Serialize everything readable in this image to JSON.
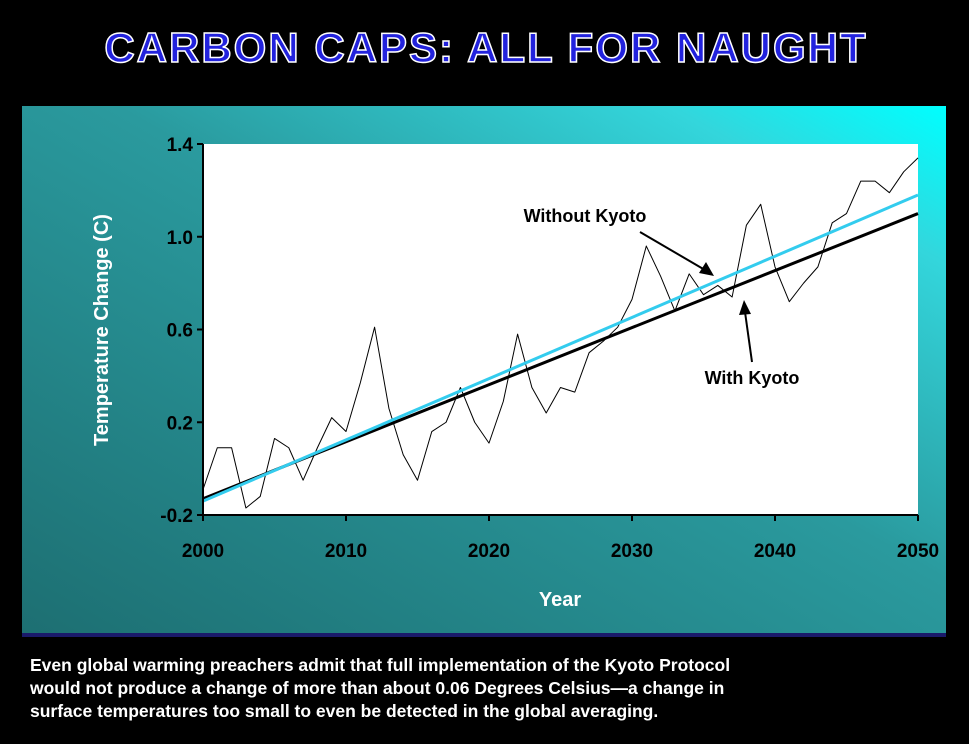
{
  "chart_data": {
    "type": "line",
    "title": "CARBON CAPS: ALL FOR NAUGHT",
    "y_label": "Temperature Change (C)",
    "x_label": "Year",
    "xlim": [
      2000,
      2050
    ],
    "xticks": [
      2000,
      2010,
      2020,
      2030,
      2040,
      2050
    ],
    "ylim": [
      -0.2,
      1.4
    ],
    "yticks": [
      -0.2,
      0.2,
      0.6,
      {
        "value": 1,
        "label": "1.0"
      },
      1.4
    ],
    "series": [
      {
        "color": "#000000",
        "width": 1,
        "x": [
          2000,
          2001,
          2002,
          2003,
          2004,
          2005,
          2006,
          2007,
          2008,
          2009,
          2010,
          2011,
          2012,
          2013,
          2014,
          2015,
          2016,
          2017,
          2018,
          2019,
          2020,
          2021,
          2022,
          2023,
          2024,
          2025,
          2026,
          2027,
          2028,
          2029,
          2030,
          2031,
          2032,
          2033,
          2034,
          2035,
          2036,
          2037,
          2038,
          2039,
          2040,
          2041,
          2042,
          2043,
          2044,
          2045,
          2046,
          2047,
          2048,
          2049,
          2050
        ],
        "values": [
          -0.09,
          0.09,
          0.09,
          -0.17,
          -0.12,
          0.13,
          0.09,
          -0.05,
          0.09,
          0.22,
          0.16,
          0.37,
          0.61,
          0.26,
          0.06,
          -0.05,
          0.16,
          0.2,
          0.35,
          0.2,
          0.11,
          0.29,
          0.58,
          0.35,
          0.24,
          0.35,
          0.33,
          0.5,
          0.55,
          0.61,
          0.73,
          0.96,
          0.83,
          0.68,
          0.84,
          0.75,
          0.79,
          0.74,
          1.05,
          1.14,
          0.87,
          0.72,
          0.8,
          0.87,
          1.06,
          1.1,
          1.24,
          1.24,
          1.19,
          1.28,
          1.34
        ]
      },
      {
        "color": "#000000",
        "width": 3,
        "x": [
          2000,
          2050
        ],
        "values": [
          -0.13,
          1.1
        ]
      },
      {
        "color": "#33ccee",
        "width": 3,
        "x": [
          2000,
          2050
        ],
        "values": [
          -0.14,
          1.18
        ]
      }
    ],
    "annotations": [
      "Without Kyoto",
      "With Kyoto"
    ]
  },
  "caption": [
    "Even global warming preachers admit that full implementation of the Kyoto Protocol",
    "would not produce a change of more than about 0.06 Degrees Celsius—a change in",
    "surface temperatures too small to even be detected in the global averaging."
  ]
}
